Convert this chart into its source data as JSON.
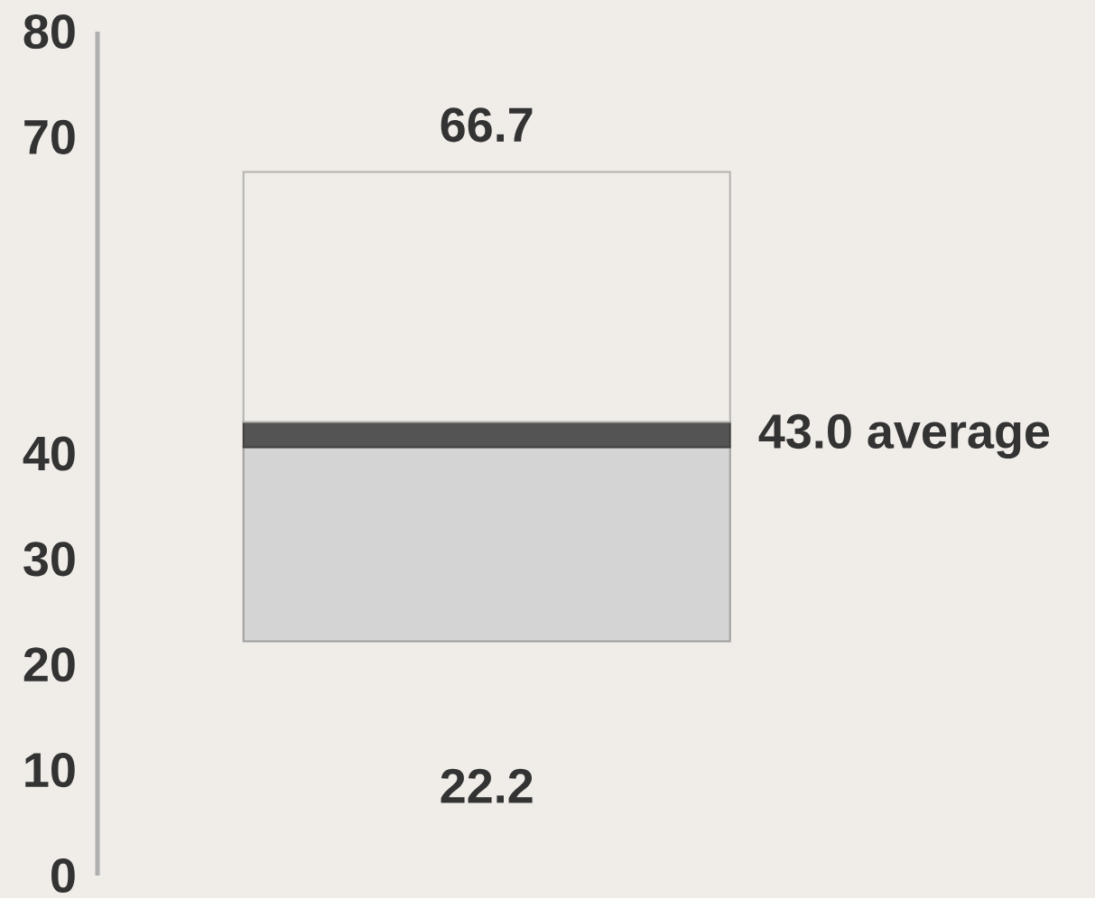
{
  "chart_data": {
    "type": "bar",
    "categories": [
      null
    ],
    "series": [
      {
        "color": "#d4d4d4",
        "base": [
          22.2
        ],
        "values": [
          18.4
        ]
      },
      {
        "color": "#545454",
        "base": [
          40.6
        ],
        "values": [
          2.4
        ]
      },
      {
        "color": "#f0ede8",
        "base": [
          43.0
        ],
        "values": [
          23.7
        ]
      }
    ],
    "ylim": [
      0,
      80
    ],
    "yticks": [
      0,
      10,
      20,
      30,
      40,
      70,
      80
    ],
    "annotations": [
      "66.7",
      "43.0 average",
      "22.2"
    ]
  }
}
